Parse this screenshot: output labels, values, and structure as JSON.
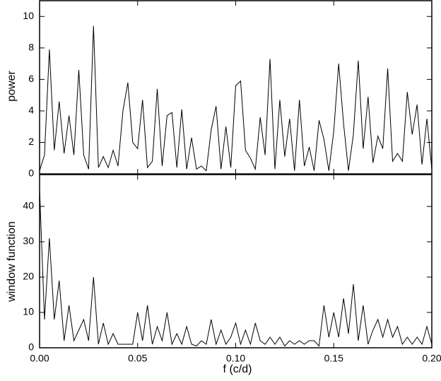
{
  "chart_data": [
    {
      "type": "line",
      "ylabel": "power",
      "x": [
        0,
        0.0025,
        0.005,
        0.0075,
        0.01,
        0.0125,
        0.015,
        0.0175,
        0.02,
        0.0225,
        0.025,
        0.0275,
        0.03,
        0.0325,
        0.035,
        0.0375,
        0.04,
        0.0425,
        0.045,
        0.0475,
        0.05,
        0.0525,
        0.055,
        0.0575,
        0.06,
        0.0625,
        0.065,
        0.0675,
        0.07,
        0.0725,
        0.075,
        0.0775,
        0.08,
        0.0825,
        0.085,
        0.0875,
        0.09,
        0.0925,
        0.095,
        0.0975,
        0.1,
        0.1025,
        0.105,
        0.1075,
        0.11,
        0.1125,
        0.115,
        0.1175,
        0.12,
        0.1225,
        0.125,
        0.1275,
        0.13,
        0.1325,
        0.135,
        0.1375,
        0.14,
        0.1425,
        0.145,
        0.1475,
        0.15,
        0.1525,
        0.155,
        0.1575,
        0.16,
        0.1625,
        0.165,
        0.1675,
        0.17,
        0.1725,
        0.175,
        0.1775,
        0.18,
        0.1825,
        0.185,
        0.1875,
        0.19,
        0.1925,
        0.195,
        0.1975,
        0.2
      ],
      "series": [
        {
          "color": "#000000",
          "values": [
            0.2,
            1.2,
            7.9,
            1.5,
            4.6,
            1.3,
            3.7,
            1.2,
            6.6,
            1.2,
            0.3,
            9.4,
            0.4,
            1.1,
            0.4,
            1.5,
            0.5,
            4.0,
            5.8,
            2.0,
            1.6,
            4.7,
            0.4,
            0.8,
            5.4,
            0.5,
            3.7,
            3.9,
            0.4,
            4.1,
            0.3,
            2.3,
            0.3,
            0.5,
            0.2,
            2.8,
            4.3,
            0.3,
            3.0,
            0.4,
            5.6,
            5.9,
            1.5,
            1.0,
            0.3,
            3.6,
            1.2,
            7.3,
            0.3,
            4.7,
            1.1,
            3.5,
            0.2,
            4.7,
            0.5,
            1.7,
            0.2,
            3.4,
            2.2,
            0.2,
            2.7,
            7.0,
            3.2,
            0.2,
            2.5,
            7.2,
            1.6,
            4.9,
            0.7,
            2.4,
            1.6,
            6.7,
            0.8,
            1.3,
            0.8,
            5.2,
            2.5,
            4.4,
            0.6,
            3.5,
            0.3
          ]
        }
      ],
      "xlim": [
        0,
        0.2
      ],
      "xticks": [
        0,
        0.05,
        0.1,
        0.15,
        0.2
      ],
      "ylim": [
        0,
        11
      ],
      "yticks": [
        0,
        2,
        4,
        6,
        8,
        10
      ]
    },
    {
      "type": "line",
      "ylabel": "window function",
      "xlabel": "f (c/d)",
      "x": [
        0,
        0.0025,
        0.005,
        0.0075,
        0.01,
        0.0125,
        0.015,
        0.0175,
        0.02,
        0.0225,
        0.025,
        0.0275,
        0.03,
        0.0325,
        0.035,
        0.0375,
        0.04,
        0.0425,
        0.045,
        0.0475,
        0.05,
        0.0525,
        0.055,
        0.0575,
        0.06,
        0.0625,
        0.065,
        0.0675,
        0.07,
        0.0725,
        0.075,
        0.0775,
        0.08,
        0.0825,
        0.085,
        0.0875,
        0.09,
        0.0925,
        0.095,
        0.0975,
        0.1,
        0.1025,
        0.105,
        0.1075,
        0.11,
        0.1125,
        0.115,
        0.1175,
        0.12,
        0.1225,
        0.125,
        0.1275,
        0.13,
        0.1325,
        0.135,
        0.1375,
        0.14,
        0.1425,
        0.145,
        0.1475,
        0.15,
        0.1525,
        0.155,
        0.1575,
        0.16,
        0.1625,
        0.165,
        0.1675,
        0.17,
        0.1725,
        0.175,
        0.1775,
        0.18,
        0.1825,
        0.185,
        0.1875,
        0.19,
        0.1925,
        0.195,
        0.1975,
        0.2
      ],
      "series": [
        {
          "color": "#000000",
          "values": [
            45,
            8,
            31,
            8,
            19,
            2,
            12,
            2,
            5,
            8,
            2,
            20,
            1,
            7,
            1,
            4,
            1,
            1,
            1,
            1,
            10,
            2,
            12,
            1,
            6,
            2,
            10,
            1,
            4,
            1,
            6,
            1,
            0.5,
            2,
            1,
            8,
            1,
            5,
            1,
            3,
            7,
            1,
            5,
            1,
            7,
            2,
            1,
            3,
            1,
            3,
            0.5,
            2,
            1,
            2,
            1,
            2,
            2,
            0.5,
            12,
            3,
            10,
            3,
            14,
            4,
            18,
            2,
            12,
            1,
            5,
            8,
            3,
            8,
            3,
            6,
            1,
            3,
            1,
            3,
            1,
            6,
            1
          ]
        }
      ],
      "xlim": [
        0,
        0.2
      ],
      "xticks": [
        {
          "value": 0,
          "label": "0.00"
        },
        {
          "value": 0.05,
          "label": "0.05"
        },
        {
          "value": 0.1,
          "label": "0.10"
        },
        {
          "value": 0.15,
          "label": "0.15"
        },
        {
          "value": 0.2,
          "label": "0.20"
        }
      ],
      "ylim": [
        0,
        49
      ],
      "yticks": [
        0,
        10,
        20,
        30,
        40
      ]
    }
  ]
}
